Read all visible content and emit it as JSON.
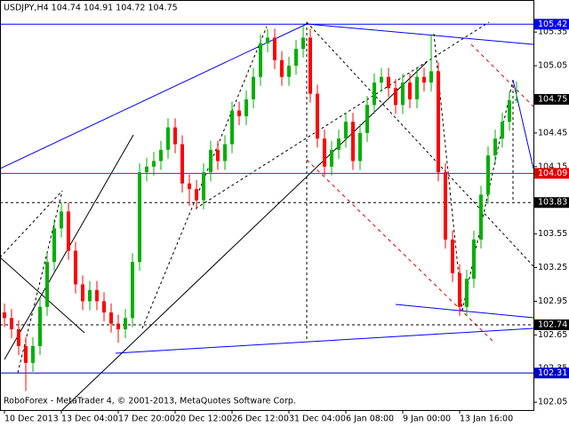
{
  "chart_data": {
    "type": "candlestick",
    "title": "USDJPY,H4  104.74 104.91 104.72 104.75",
    "footer": "RoboForex - MetaTrader 4, © 2001-2013, MetaQuotes Software Corp.",
    "categories": [
      "10 Dec 2013",
      null,
      null,
      null,
      null,
      null,
      null,
      null,
      "13 Dec 04:00",
      null,
      null,
      null,
      null,
      null,
      null,
      null,
      "17 Dec 20:00",
      null,
      null,
      null,
      null,
      null,
      null,
      null,
      "20 Dec 12:00",
      null,
      null,
      null,
      null,
      null,
      null,
      null,
      "26 Dec 12:00",
      null,
      null,
      null,
      null,
      null,
      null,
      null,
      "31 Dec 04:00",
      null,
      null,
      null,
      null,
      null,
      null,
      null,
      "6 Jan 08:00",
      null,
      null,
      null,
      null,
      null,
      null,
      null,
      "9 Jan 00:00",
      null,
      null,
      null,
      null,
      null,
      null,
      null,
      "13 Jan 16:00",
      null,
      null,
      null,
      null,
      null,
      null,
      null,
      null
    ],
    "open": [
      102.85,
      102.8,
      102.7,
      102.55,
      102.4,
      102.55,
      102.9,
      103.3,
      103.6,
      103.75,
      103.4,
      103.1,
      102.95,
      103.05,
      102.95,
      102.85,
      102.75,
      102.7,
      102.8,
      103.3,
      104.1,
      104.15,
      104.2,
      104.3,
      104.5,
      104.35,
      104.0,
      103.95,
      103.85,
      104.1,
      104.3,
      104.2,
      104.35,
      104.65,
      104.6,
      104.75,
      104.95,
      105.25,
      105.3,
      105.1,
      104.95,
      105.05,
      105.2,
      105.3,
      104.8,
      104.4,
      104.15,
      104.3,
      104.4,
      104.55,
      104.2,
      104.45,
      104.7,
      104.9,
      104.95,
      104.85,
      104.7,
      104.9,
      104.75,
      104.95,
      104.9,
      105.0,
      104.1,
      103.5,
      103.2,
      102.9,
      103.15,
      103.5,
      103.9,
      104.25,
      104.4,
      104.55,
      104.74
    ],
    "high": [
      102.93,
      102.88,
      102.78,
      102.63,
      102.63,
      102.98,
      103.38,
      103.68,
      103.83,
      103.83,
      103.48,
      103.18,
      103.13,
      103.13,
      103.03,
      102.93,
      102.83,
      102.88,
      103.38,
      104.18,
      104.23,
      104.28,
      104.38,
      104.58,
      104.58,
      104.43,
      104.08,
      104.03,
      104.18,
      104.38,
      104.38,
      104.43,
      104.73,
      104.73,
      104.83,
      105.03,
      105.33,
      105.38,
      105.38,
      105.18,
      105.13,
      105.28,
      105.42,
      105.38,
      104.88,
      104.48,
      104.38,
      104.48,
      104.63,
      104.63,
      104.53,
      104.78,
      104.98,
      105.03,
      105.03,
      104.93,
      104.98,
      104.98,
      105.03,
      105.03,
      105.33,
      105.08,
      104.18,
      103.58,
      103.28,
      103.23,
      103.58,
      103.98,
      104.33,
      104.48,
      104.63,
      104.82,
      104.91
    ],
    "low": [
      102.72,
      102.62,
      102.47,
      102.15,
      102.32,
      102.47,
      102.82,
      103.22,
      103.52,
      103.32,
      103.02,
      102.87,
      102.87,
      102.87,
      102.77,
      102.67,
      102.58,
      102.62,
      102.72,
      103.22,
      104.02,
      104.07,
      104.12,
      104.22,
      104.27,
      103.92,
      103.8,
      103.77,
      103.77,
      104.02,
      104.12,
      104.12,
      104.27,
      104.52,
      104.52,
      104.67,
      104.87,
      105.17,
      105.02,
      104.87,
      104.87,
      104.97,
      105.12,
      104.72,
      104.32,
      104.07,
      104.07,
      104.22,
      104.32,
      104.12,
      104.12,
      104.37,
      104.62,
      104.82,
      104.77,
      104.62,
      104.62,
      104.67,
      104.67,
      104.82,
      104.82,
      104.02,
      103.42,
      103.12,
      102.82,
      102.82,
      103.07,
      103.42,
      103.82,
      104.17,
      104.32,
      104.47,
      104.72
    ],
    "close": [
      102.8,
      102.7,
      102.55,
      102.4,
      102.55,
      102.9,
      103.3,
      103.6,
      103.75,
      103.4,
      103.1,
      102.95,
      103.05,
      102.95,
      102.85,
      102.75,
      102.7,
      102.8,
      103.3,
      104.1,
      104.15,
      104.2,
      104.3,
      104.5,
      104.35,
      104.0,
      103.95,
      103.85,
      104.1,
      104.3,
      104.2,
      104.35,
      104.65,
      104.6,
      104.75,
      104.95,
      105.25,
      105.3,
      105.1,
      104.95,
      105.05,
      105.2,
      105.3,
      104.8,
      104.4,
      104.15,
      104.3,
      104.4,
      104.55,
      104.2,
      104.45,
      104.7,
      104.9,
      104.95,
      104.85,
      104.7,
      104.9,
      104.75,
      104.95,
      104.9,
      105.0,
      104.1,
      103.5,
      103.2,
      102.9,
      103.15,
      103.5,
      103.9,
      104.25,
      104.4,
      104.55,
      104.74,
      104.75
    ],
    "up_color": "#00b000",
    "down_color": "#ff0000",
    "ylim": [
      101.98,
      105.62
    ],
    "yticks": [
      105.35,
      105.05,
      104.45,
      104.15,
      103.55,
      103.25,
      102.95,
      102.65,
      102.35,
      102.05
    ],
    "levels": [
      {
        "value": 105.42,
        "color": "#0000ff",
        "style": "solid"
      },
      {
        "value": 104.75,
        "color": "#000000",
        "style": "none"
      },
      {
        "value": 104.09,
        "color": "#e00000",
        "style": "solid"
      },
      {
        "value": 103.83,
        "color": "#000000",
        "style": "dashed"
      },
      {
        "value": 102.74,
        "color": "#000000",
        "style": "dashed"
      },
      {
        "value": 102.31,
        "color": "#0000cc",
        "style": "solid"
      }
    ]
  }
}
